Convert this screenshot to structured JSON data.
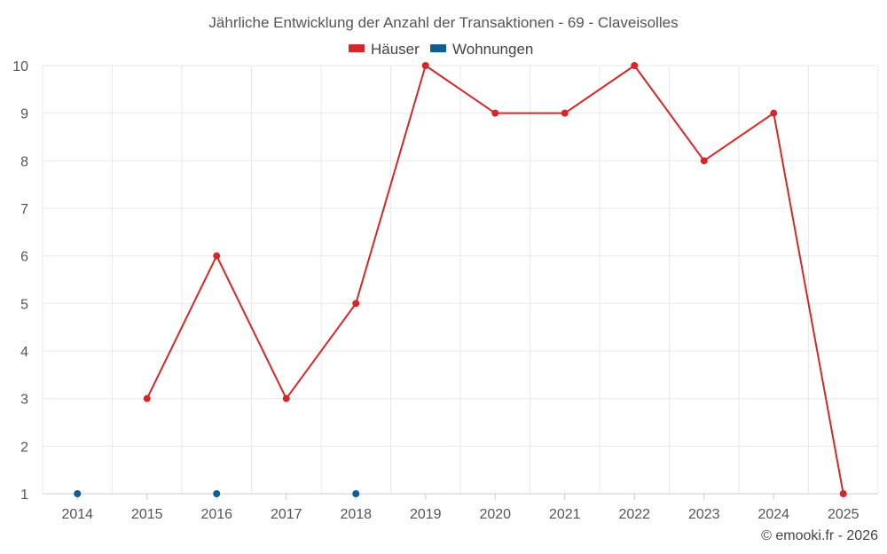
{
  "chart_data": {
    "type": "line",
    "title": "Jährliche Entwicklung der Anzahl der Transaktionen - 69 - Claveisolles",
    "categories": [
      "2014",
      "2015",
      "2016",
      "2017",
      "2018",
      "2019",
      "2020",
      "2021",
      "2022",
      "2023",
      "2024",
      "2025"
    ],
    "ylim": [
      1,
      10
    ],
    "yticks": [
      1,
      2,
      3,
      4,
      5,
      6,
      7,
      8,
      9,
      10
    ],
    "grid": true,
    "legend_position": "top-center",
    "series": [
      {
        "name": "Häuser",
        "color": "#d62728",
        "values": [
          null,
          3,
          6,
          3,
          5,
          10,
          9,
          9,
          10,
          8,
          9,
          1
        ]
      },
      {
        "name": "Wohnungen",
        "color": "#0a5f96",
        "values": [
          1,
          null,
          1,
          null,
          1,
          null,
          null,
          null,
          null,
          null,
          null,
          null
        ]
      }
    ],
    "xlabel": "",
    "ylabel": ""
  },
  "credit": "© emooki.fr - 2026"
}
